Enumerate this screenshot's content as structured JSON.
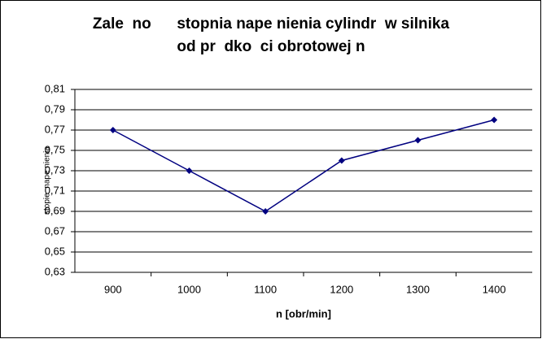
{
  "chart_data": {
    "type": "line",
    "title": [
      "Zale  no      stopnia nape nienia cylindr  w silnika",
      "od pr  dko  ci obrotowej n"
    ],
    "x_label": "n [obr/min]",
    "y_label": "stopie  nape nienia",
    "categories": [
      "900",
      "1000",
      "1100",
      "1200",
      "1300",
      "1400"
    ],
    "values": [
      0.77,
      0.73,
      0.69,
      0.74,
      0.76,
      0.78
    ],
    "color": "#000080",
    "ylim": [
      0.63,
      0.81
    ],
    "yticks": [
      {
        "value": 0.63,
        "label": "0,63"
      },
      {
        "value": 0.65,
        "label": "0,65"
      },
      {
        "value": 0.67,
        "label": "0,67"
      },
      {
        "value": 0.69,
        "label": "0,69"
      },
      {
        "value": 0.71,
        "label": "0,71"
      },
      {
        "value": 0.73,
        "label": "0,73"
      },
      {
        "value": 0.75,
        "label": "0,75"
      },
      {
        "value": 0.77,
        "label": "0,77"
      },
      {
        "value": 0.79,
        "label": "0,79"
      },
      {
        "value": 0.81,
        "label": "0,81"
      }
    ],
    "grid": true
  }
}
